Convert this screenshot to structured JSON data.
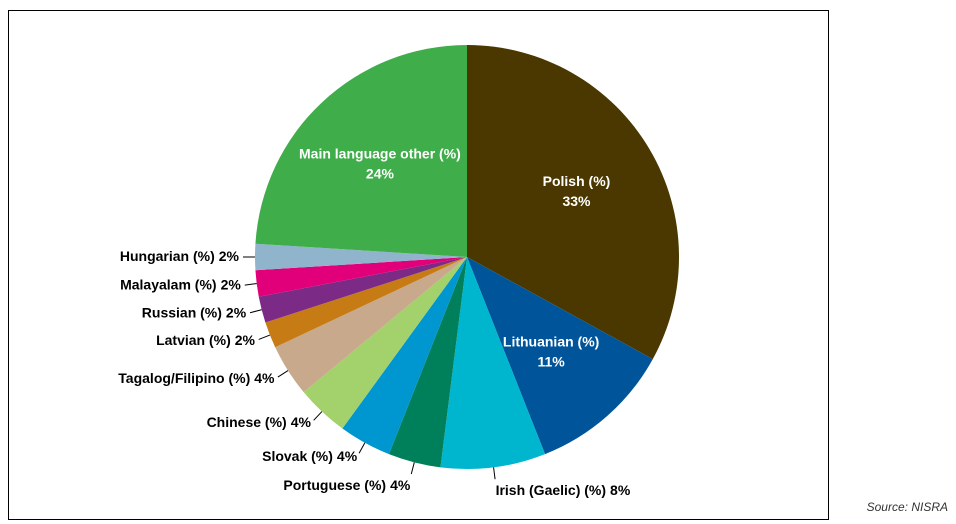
{
  "chart_data": {
    "type": "pie",
    "categories": [
      "Polish (%)",
      "Lithuanian (%)",
      "Irish (Gaelic) (%)",
      "Portuguese (%)",
      "Slovak (%)",
      "Chinese (%)",
      "Tagalog/Filipino  (%)",
      "Latvian (%)",
      "Russian (%)",
      "Malayalam (%)",
      "Hungarian (%)",
      "Main language other (%)"
    ],
    "values": [
      33,
      11,
      8,
      4,
      4,
      4,
      4,
      2,
      2,
      2,
      2,
      24
    ],
    "value_labels": [
      "33%",
      "11%",
      "8%",
      "4%",
      "4%",
      "4%",
      "4%",
      "2%",
      "2%",
      "2%",
      "2%",
      "24%"
    ],
    "colors": [
      "#4a3800",
      "#00559a",
      "#00b6cf",
      "#00805a",
      "#0097d0",
      "#a3d16c",
      "#c9a98c",
      "#c67b14",
      "#7b2a86",
      "#e2007a",
      "#8fb4cc",
      "#40ad4b"
    ],
    "source": "Source: NISRA"
  }
}
